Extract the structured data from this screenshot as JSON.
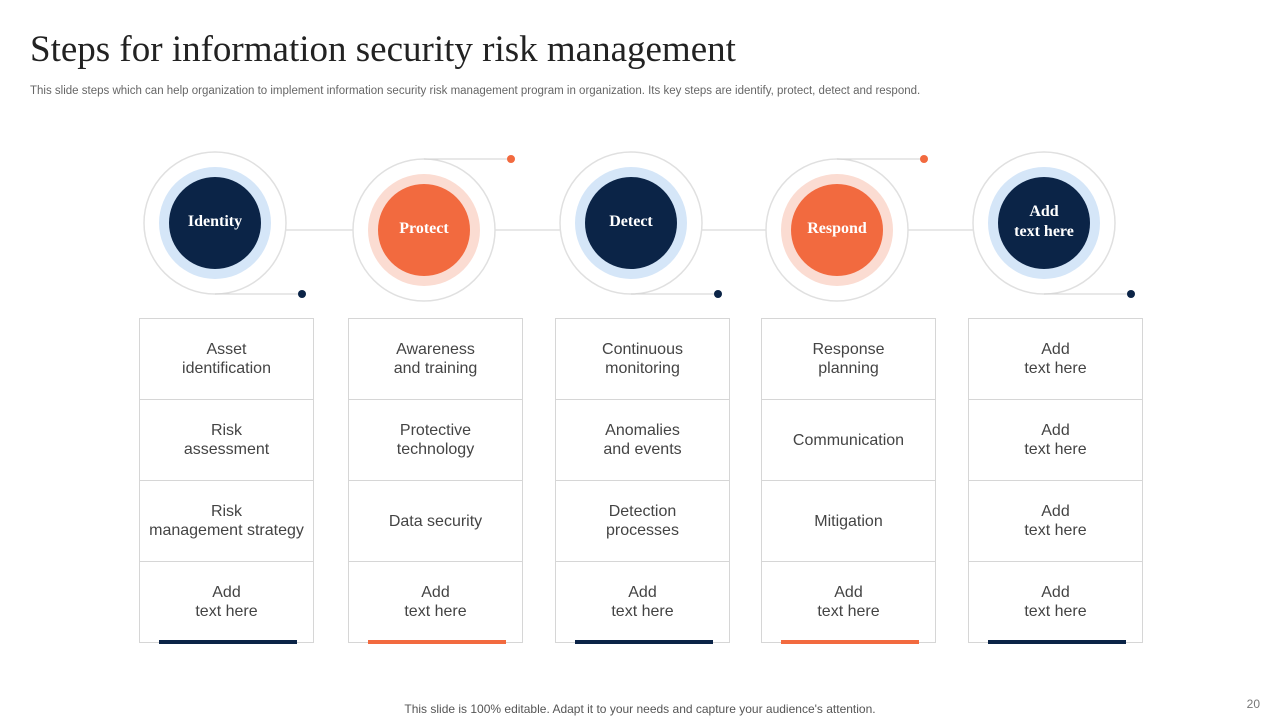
{
  "header": {
    "title": "Steps for information security risk management",
    "subtitle": "This slide steps which can help organization to implement information security risk management program in organization. Its key steps are identify, protect, detect and respond."
  },
  "steps": [
    {
      "label": "Identity",
      "color": "#0b2447",
      "halo": "#d5e6f8",
      "items": [
        "Asset\nidentification",
        "Risk\nassessment",
        "Risk\nmanagement strategy",
        "Add\ntext here"
      ]
    },
    {
      "label": "Protect",
      "color": "#f26a3f",
      "halo": "#fbdcd2",
      "items": [
        "Awareness\nand training",
        "Protective\ntechnology",
        "Data security",
        "Add\ntext here"
      ]
    },
    {
      "label": "Detect",
      "color": "#0b2447",
      "halo": "#d5e6f8",
      "items": [
        "Continuous\nmonitoring",
        "Anomalies\nand events",
        "Detection\nprocesses",
        "Add\ntext here"
      ]
    },
    {
      "label": "Respond",
      "color": "#f26a3f",
      "halo": "#fbdcd2",
      "items": [
        "Response\nplanning",
        "Communication",
        "Mitigation",
        "Add\ntext here"
      ]
    },
    {
      "label": "Add\ntext here",
      "color": "#0b2447",
      "halo": "#d5e6f8",
      "items": [
        "Add\ntext here",
        "Add\ntext here",
        "Add\ntext here",
        "Add\ntext here"
      ]
    }
  ],
  "footer": {
    "note": "This slide is 100% editable. Adapt it to your needs and capture your audience's attention.",
    "page": "20"
  }
}
